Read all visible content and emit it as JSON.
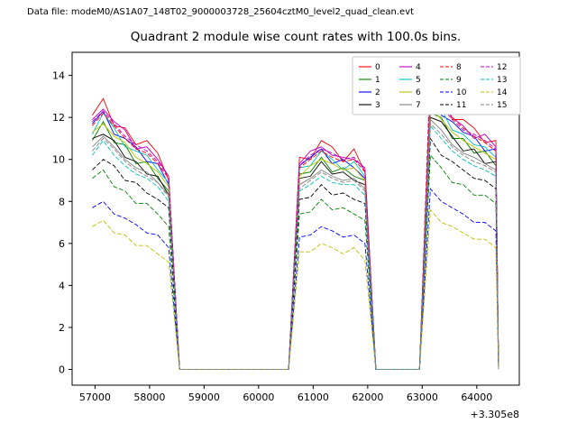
{
  "header": {
    "datafile_label": "Data file: modeM0/AS1A07_148T02_9000003728_25604cztM0_level2_quad_clean.evt",
    "title": "Quadrant 2 module wise count rates with 100.0s bins."
  },
  "chart_data": {
    "type": "line",
    "title": "Quadrant 2 module wise count rates with 100.0s bins.",
    "xlabel": "",
    "ylabel": "",
    "x_offset_label": "+3.305e8",
    "legend_position": "upper right",
    "grid": false,
    "xlim": [
      56580,
      64780
    ],
    "ylim": [
      -0.75,
      15.1
    ],
    "x_ticks": [
      57000,
      58000,
      59000,
      60000,
      61000,
      62000,
      63000,
      64000
    ],
    "y_ticks": [
      0,
      2,
      4,
      6,
      8,
      10,
      12,
      14
    ],
    "x": [
      56950,
      57150,
      57350,
      57550,
      57750,
      57950,
      58150,
      58350,
      58550,
      58750,
      58950,
      59150,
      59350,
      59550,
      59750,
      59950,
      60150,
      60350,
      60550,
      60750,
      60950,
      61150,
      61350,
      61550,
      61750,
      61950,
      62150,
      62350,
      62550,
      62750,
      62950,
      63150,
      63350,
      63550,
      63750,
      63950,
      64150,
      64350,
      64400
    ],
    "series": [
      {
        "name": "0",
        "color": "#ff0000",
        "dash": false,
        "values": [
          12.1,
          12.9,
          11.6,
          11.5,
          10.7,
          10.9,
          10.3,
          9.0,
          0,
          0,
          0,
          0,
          0,
          0,
          0,
          0,
          0,
          0,
          0,
          10.1,
          10.0,
          10.9,
          10.6,
          9.9,
          10.5,
          9.4,
          0,
          0,
          0,
          0,
          0,
          13.0,
          13.1,
          11.9,
          11.9,
          11.5,
          10.8,
          10.9,
          0
        ]
      },
      {
        "name": "1",
        "color": "#008000",
        "dash": false,
        "values": [
          10.9,
          11.8,
          10.8,
          10.7,
          9.8,
          9.9,
          9.1,
          8.5,
          0,
          0,
          0,
          0,
          0,
          0,
          0,
          0,
          0,
          0,
          0,
          9.3,
          9.4,
          10.1,
          9.4,
          9.6,
          9.2,
          9.0,
          0,
          0,
          0,
          0,
          0,
          12.2,
          12.0,
          11.0,
          11.0,
          10.3,
          10.4,
          9.7,
          0
        ]
      },
      {
        "name": "2",
        "color": "#0000ff",
        "dash": false,
        "values": [
          11.7,
          12.3,
          11.2,
          11.0,
          10.6,
          9.9,
          9.8,
          8.8,
          0,
          0,
          0,
          0,
          0,
          0,
          0,
          0,
          0,
          0,
          0,
          9.7,
          10.1,
          10.5,
          9.8,
          10.0,
          9.6,
          9.1,
          0,
          0,
          0,
          0,
          0,
          13.2,
          12.1,
          11.8,
          11.3,
          11.1,
          10.4,
          10.5,
          0
        ]
      },
      {
        "name": "3",
        "color": "#000000",
        "dash": false,
        "values": [
          11.0,
          11.2,
          10.9,
          10.1,
          9.9,
          9.3,
          9.2,
          8.3,
          0,
          0,
          0,
          0,
          0,
          0,
          0,
          0,
          0,
          0,
          0,
          9.1,
          9.2,
          9.9,
          9.3,
          9.4,
          9.0,
          8.8,
          0,
          0,
          0,
          0,
          0,
          12.0,
          11.8,
          11.1,
          10.4,
          10.5,
          9.8,
          9.9,
          0
        ]
      },
      {
        "name": "4",
        "color": "#bf00bf",
        "dash": false,
        "values": [
          11.9,
          12.4,
          11.8,
          11.4,
          10.5,
          10.6,
          10.0,
          9.2,
          0,
          0,
          0,
          0,
          0,
          0,
          0,
          0,
          0,
          0,
          0,
          9.8,
          10.4,
          10.6,
          10.2,
          10.1,
          10.0,
          9.6,
          0,
          0,
          0,
          0,
          0,
          13.5,
          12.6,
          12.0,
          11.6,
          11.0,
          11.2,
          10.6,
          0
        ]
      },
      {
        "name": "5",
        "color": "#00bfbf",
        "dash": false,
        "values": [
          11.2,
          12.2,
          11.5,
          10.6,
          10.4,
          10.2,
          9.5,
          8.9,
          0,
          0,
          0,
          0,
          0,
          0,
          0,
          0,
          0,
          0,
          0,
          9.6,
          9.7,
          10.4,
          10.0,
          9.5,
          9.9,
          9.2,
          0,
          0,
          0,
          0,
          0,
          12.6,
          12.4,
          11.4,
          11.2,
          10.7,
          10.6,
          10.1,
          0
        ]
      },
      {
        "name": "6",
        "color": "#bfbf00",
        "dash": false,
        "values": [
          11.3,
          11.7,
          11.1,
          10.8,
          10.1,
          9.8,
          9.4,
          8.7,
          0,
          0,
          0,
          0,
          0,
          0,
          0,
          0,
          0,
          0,
          0,
          9.2,
          9.7,
          10.0,
          9.8,
          9.5,
          9.6,
          9.0,
          0,
          0,
          0,
          0,
          0,
          12.5,
          11.9,
          11.3,
          10.9,
          10.6,
          10.3,
          10.0,
          0
        ]
      },
      {
        "name": "7",
        "color": "#808080",
        "dash": false,
        "values": [
          10.6,
          11.1,
          10.6,
          10.0,
          9.6,
          9.4,
          8.9,
          8.3,
          0,
          0,
          0,
          0,
          0,
          0,
          0,
          0,
          0,
          0,
          0,
          8.8,
          9.1,
          9.5,
          9.2,
          9.0,
          9.1,
          8.6,
          0,
          0,
          0,
          0,
          0,
          11.9,
          11.4,
          10.7,
          10.3,
          10.1,
          9.8,
          9.5,
          0
        ]
      },
      {
        "name": "8",
        "color": "#ff0000",
        "dash": true,
        "values": [
          11.6,
          12.2,
          11.6,
          11.0,
          10.5,
          10.3,
          9.8,
          9.1,
          0,
          0,
          0,
          0,
          0,
          0,
          0,
          0,
          0,
          0,
          0,
          9.6,
          10.0,
          10.4,
          10.1,
          9.9,
          10.0,
          9.4,
          0,
          0,
          0,
          0,
          0,
          14.4,
          12.9,
          12.0,
          11.5,
          11.1,
          10.8,
          10.4,
          0
        ]
      },
      {
        "name": "9",
        "color": "#008000",
        "dash": true,
        "values": [
          9.1,
          9.5,
          8.7,
          8.5,
          7.9,
          7.9,
          7.4,
          6.8,
          0,
          0,
          0,
          0,
          0,
          0,
          0,
          0,
          0,
          0,
          0,
          7.4,
          7.5,
          8.1,
          7.6,
          7.7,
          7.4,
          7.1,
          0,
          0,
          0,
          0,
          0,
          10.2,
          9.6,
          8.9,
          8.8,
          8.3,
          8.3,
          7.9,
          0
        ]
      },
      {
        "name": "10",
        "color": "#0000ff",
        "dash": true,
        "values": [
          7.7,
          8.0,
          7.4,
          7.2,
          6.9,
          6.5,
          6.4,
          5.8,
          0,
          0,
          0,
          0,
          0,
          0,
          0,
          0,
          0,
          0,
          0,
          6.3,
          6.4,
          6.8,
          6.6,
          6.3,
          6.4,
          6.0,
          0,
          0,
          0,
          0,
          0,
          8.6,
          8.0,
          7.7,
          7.4,
          7.0,
          7.0,
          6.6,
          0
        ]
      },
      {
        "name": "11",
        "color": "#000000",
        "dash": true,
        "values": [
          9.5,
          10.0,
          9.7,
          9.0,
          8.9,
          8.4,
          8.1,
          7.7,
          0,
          0,
          0,
          0,
          0,
          0,
          0,
          0,
          0,
          0,
          0,
          8.1,
          8.2,
          8.8,
          8.3,
          8.4,
          8.1,
          7.9,
          0,
          0,
          0,
          0,
          0,
          11.0,
          10.2,
          9.9,
          9.5,
          9.1,
          9.0,
          8.6,
          0
        ]
      },
      {
        "name": "12",
        "color": "#bf00bf",
        "dash": true,
        "values": [
          11.8,
          12.3,
          11.7,
          11.1,
          10.7,
          10.4,
          9.9,
          9.2,
          0,
          0,
          0,
          0,
          0,
          0,
          0,
          0,
          0,
          0,
          0,
          9.7,
          10.2,
          10.5,
          10.3,
          10.0,
          10.1,
          9.5,
          0,
          0,
          0,
          0,
          0,
          13.3,
          12.5,
          11.9,
          11.4,
          11.2,
          10.9,
          10.5,
          0
        ]
      },
      {
        "name": "13",
        "color": "#00bfbf",
        "dash": true,
        "values": [
          10.2,
          10.9,
          10.2,
          9.7,
          9.3,
          9.1,
          8.7,
          8.0,
          0,
          0,
          0,
          0,
          0,
          0,
          0,
          0,
          0,
          0,
          0,
          8.5,
          8.8,
          9.2,
          8.9,
          8.8,
          8.8,
          8.3,
          0,
          0,
          0,
          0,
          0,
          11.6,
          11.0,
          10.4,
          10.0,
          9.7,
          9.5,
          9.2,
          0
        ]
      },
      {
        "name": "14",
        "color": "#bfbf00",
        "dash": true,
        "values": [
          6.8,
          7.1,
          6.5,
          6.4,
          5.9,
          5.9,
          5.5,
          5.1,
          0,
          0,
          0,
          0,
          0,
          0,
          0,
          0,
          0,
          0,
          0,
          5.6,
          5.6,
          6.0,
          5.8,
          5.5,
          5.8,
          5.2,
          0,
          0,
          0,
          0,
          0,
          7.6,
          7.0,
          6.8,
          6.5,
          6.2,
          6.2,
          5.8,
          0
        ]
      },
      {
        "name": "15",
        "color": "#808080",
        "dash": true,
        "values": [
          10.4,
          11.0,
          10.5,
          9.9,
          9.5,
          9.2,
          8.9,
          8.2,
          0,
          0,
          0,
          0,
          0,
          0,
          0,
          0,
          0,
          0,
          0,
          8.6,
          9.0,
          9.4,
          9.1,
          8.9,
          9.0,
          8.5,
          0,
          0,
          0,
          0,
          0,
          11.7,
          11.2,
          10.6,
          10.2,
          9.9,
          9.7,
          9.4,
          0
        ]
      }
    ]
  }
}
